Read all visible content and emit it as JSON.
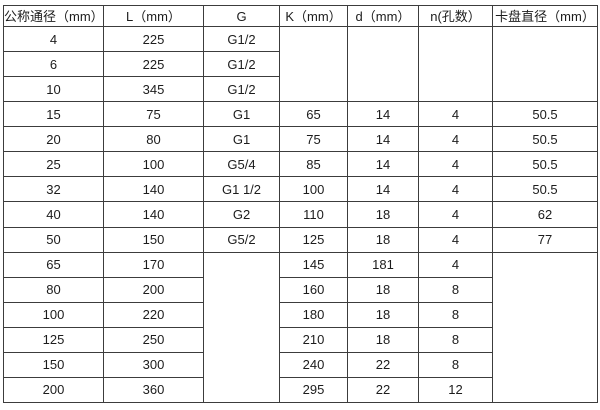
{
  "table": {
    "headers": [
      "公称通径（mm）",
      "L（mm）",
      "G",
      "K（mm）",
      "d（mm）",
      "n(孔数）",
      "卡盘直径（mm）"
    ],
    "rows": [
      {
        "cells": [
          {
            "v": "4"
          },
          {
            "v": "225"
          },
          {
            "v": "G1/2"
          },
          {
            "v": "",
            "rowspan": 3
          },
          {
            "v": "",
            "rowspan": 3
          },
          {
            "v": "",
            "rowspan": 3
          },
          {
            "v": "",
            "rowspan": 3
          }
        ]
      },
      {
        "cells": [
          {
            "v": "6"
          },
          {
            "v": "225"
          },
          {
            "v": "G1/2"
          }
        ]
      },
      {
        "cells": [
          {
            "v": "10"
          },
          {
            "v": "345"
          },
          {
            "v": "G1/2"
          }
        ]
      },
      {
        "cells": [
          {
            "v": "15"
          },
          {
            "v": "75"
          },
          {
            "v": "G1"
          },
          {
            "v": "65"
          },
          {
            "v": "14"
          },
          {
            "v": "4"
          },
          {
            "v": "50.5"
          }
        ]
      },
      {
        "cells": [
          {
            "v": "20"
          },
          {
            "v": "80"
          },
          {
            "v": "G1"
          },
          {
            "v": "75"
          },
          {
            "v": "14"
          },
          {
            "v": "4"
          },
          {
            "v": "50.5"
          }
        ]
      },
      {
        "cells": [
          {
            "v": "25"
          },
          {
            "v": "100"
          },
          {
            "v": "G5/4"
          },
          {
            "v": "85"
          },
          {
            "v": "14"
          },
          {
            "v": "4"
          },
          {
            "v": "50.5"
          }
        ]
      },
      {
        "cells": [
          {
            "v": "32"
          },
          {
            "v": "140"
          },
          {
            "v": "G1 1/2"
          },
          {
            "v": "100"
          },
          {
            "v": "14"
          },
          {
            "v": "4"
          },
          {
            "v": "50.5"
          }
        ]
      },
      {
        "cells": [
          {
            "v": "40"
          },
          {
            "v": "140"
          },
          {
            "v": "G2"
          },
          {
            "v": "110"
          },
          {
            "v": "18"
          },
          {
            "v": "4"
          },
          {
            "v": "62"
          }
        ]
      },
      {
        "cells": [
          {
            "v": "50"
          },
          {
            "v": "150"
          },
          {
            "v": "G5/2"
          },
          {
            "v": "125"
          },
          {
            "v": "18"
          },
          {
            "v": "4"
          },
          {
            "v": "77"
          }
        ]
      },
      {
        "cells": [
          {
            "v": "65"
          },
          {
            "v": "170"
          },
          {
            "v": "",
            "rowspan": 6
          },
          {
            "v": "145"
          },
          {
            "v": "181"
          },
          {
            "v": "4"
          },
          {
            "v": "",
            "rowspan": 6
          }
        ]
      },
      {
        "cells": [
          {
            "v": "80"
          },
          {
            "v": "200"
          },
          {
            "v": "160"
          },
          {
            "v": "18"
          },
          {
            "v": "8"
          }
        ]
      },
      {
        "cells": [
          {
            "v": "100"
          },
          {
            "v": "220"
          },
          {
            "v": "180"
          },
          {
            "v": "18"
          },
          {
            "v": "8"
          }
        ]
      },
      {
        "cells": [
          {
            "v": "125"
          },
          {
            "v": "250"
          },
          {
            "v": "210"
          },
          {
            "v": "18"
          },
          {
            "v": "8"
          }
        ]
      },
      {
        "cells": [
          {
            "v": "150"
          },
          {
            "v": "300"
          },
          {
            "v": "240"
          },
          {
            "v": "22"
          },
          {
            "v": "8"
          }
        ]
      },
      {
        "cells": [
          {
            "v": "200"
          },
          {
            "v": "360"
          },
          {
            "v": "295"
          },
          {
            "v": "22"
          },
          {
            "v": "12"
          }
        ]
      }
    ]
  },
  "colors": {
    "border": "#3c3c3c",
    "text": "#1c1c1c",
    "background": "#ffffff"
  }
}
